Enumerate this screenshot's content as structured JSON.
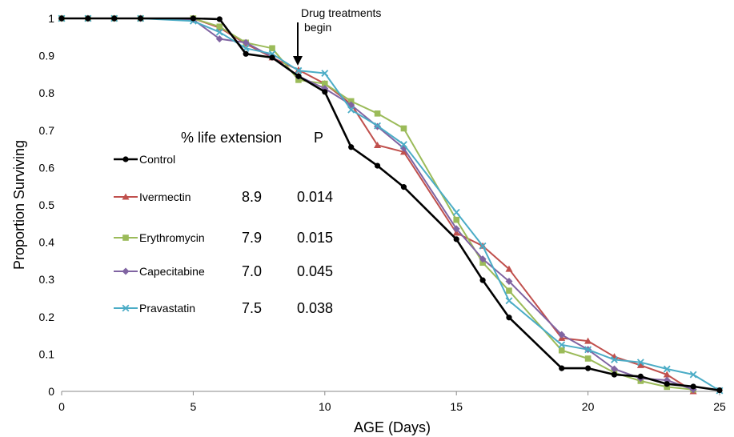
{
  "chart_data": {
    "type": "line",
    "xlabel": "AGE (Days)",
    "ylabel": "Proportion Surviving",
    "xlim": [
      0,
      25
    ],
    "ylim": [
      0,
      1
    ],
    "x_ticks": [
      "0",
      "5",
      "10",
      "15",
      "20",
      "25"
    ],
    "y_ticks": [
      "0",
      "0.1",
      "0.2",
      "0.3",
      "0.4",
      "0.5",
      "0.6",
      "0.7",
      "0.8",
      "0.9",
      "1"
    ],
    "grid": false,
    "legend_position": "inside-left",
    "annotation": {
      "lines": [
        "Drug treatments",
        "begin"
      ],
      "at_x": 9,
      "arrow": "down"
    },
    "table_headers": {
      "extension": "% life extension",
      "p": "P"
    },
    "series": [
      {
        "name": "Control",
        "color": "#000000",
        "marker": "circle",
        "extension": "",
        "p": "",
        "x": [
          0,
          1,
          2,
          3,
          5,
          6,
          7,
          8,
          9,
          10,
          11,
          12,
          13,
          15,
          16,
          17,
          19,
          20,
          21,
          22,
          23,
          24,
          25
        ],
        "values": [
          1,
          1,
          1,
          1,
          1,
          0.998,
          0.905,
          0.895,
          0.845,
          0.803,
          0.655,
          0.605,
          0.548,
          0.408,
          0.298,
          0.198,
          0.062,
          0.062,
          0.045,
          0.04,
          0.02,
          0.013,
          0.003
        ]
      },
      {
        "name": "Ivermectin",
        "color": "#c0504d",
        "marker": "triangle",
        "extension": "8.9",
        "p": "0.014",
        "x": [
          0,
          1,
          2,
          3,
          5,
          6,
          7,
          8,
          9,
          10,
          11,
          12,
          13,
          15,
          16,
          17,
          19,
          20,
          21,
          22,
          23,
          24
        ],
        "values": [
          1,
          1,
          1,
          1,
          1,
          0.975,
          0.932,
          0.895,
          0.862,
          0.825,
          0.77,
          0.66,
          0.642,
          0.425,
          0.39,
          0.328,
          0.143,
          0.135,
          0.093,
          0.07,
          0.045,
          0.0
        ]
      },
      {
        "name": "Erythromycin",
        "color": "#9bbb59",
        "marker": "square",
        "extension": "7.9",
        "p": "0.015",
        "x": [
          0,
          1,
          2,
          3,
          5,
          6,
          7,
          8,
          9,
          10,
          11,
          12,
          13,
          15,
          16,
          17,
          19,
          20,
          21,
          22,
          23,
          24
        ],
        "values": [
          1,
          1,
          1,
          1,
          1,
          0.978,
          0.935,
          0.92,
          0.835,
          0.825,
          0.778,
          0.745,
          0.705,
          0.46,
          0.345,
          0.27,
          0.11,
          0.088,
          0.05,
          0.028,
          0.012,
          0.005
        ]
      },
      {
        "name": "Capecitabine",
        "color": "#8064a2",
        "marker": "diamond",
        "extension": "7.0",
        "p": "0.045",
        "x": [
          0,
          1,
          2,
          3,
          5,
          6,
          7,
          8,
          9,
          10,
          11,
          12,
          13,
          15,
          16,
          17,
          19,
          20,
          21,
          22,
          23,
          24
        ],
        "values": [
          1,
          1,
          1,
          1,
          0.997,
          0.945,
          0.935,
          0.897,
          0.845,
          0.812,
          0.768,
          0.71,
          0.652,
          0.436,
          0.355,
          0.295,
          0.152,
          0.112,
          0.06,
          0.035,
          0.03,
          0.005
        ]
      },
      {
        "name": "Pravastatin",
        "color": "#4bacc6",
        "marker": "x",
        "extension": "7.5",
        "p": "0.038",
        "x": [
          0,
          1,
          2,
          3,
          5,
          6,
          7,
          8,
          9,
          10,
          11,
          12,
          13,
          15,
          16,
          17,
          19,
          20,
          21,
          22,
          23,
          24,
          25
        ],
        "values": [
          1,
          1,
          1,
          1,
          0.993,
          0.963,
          0.92,
          0.905,
          0.86,
          0.853,
          0.755,
          0.712,
          0.662,
          0.48,
          0.39,
          0.243,
          0.125,
          0.112,
          0.085,
          0.078,
          0.06,
          0.045,
          0.002
        ]
      }
    ]
  }
}
